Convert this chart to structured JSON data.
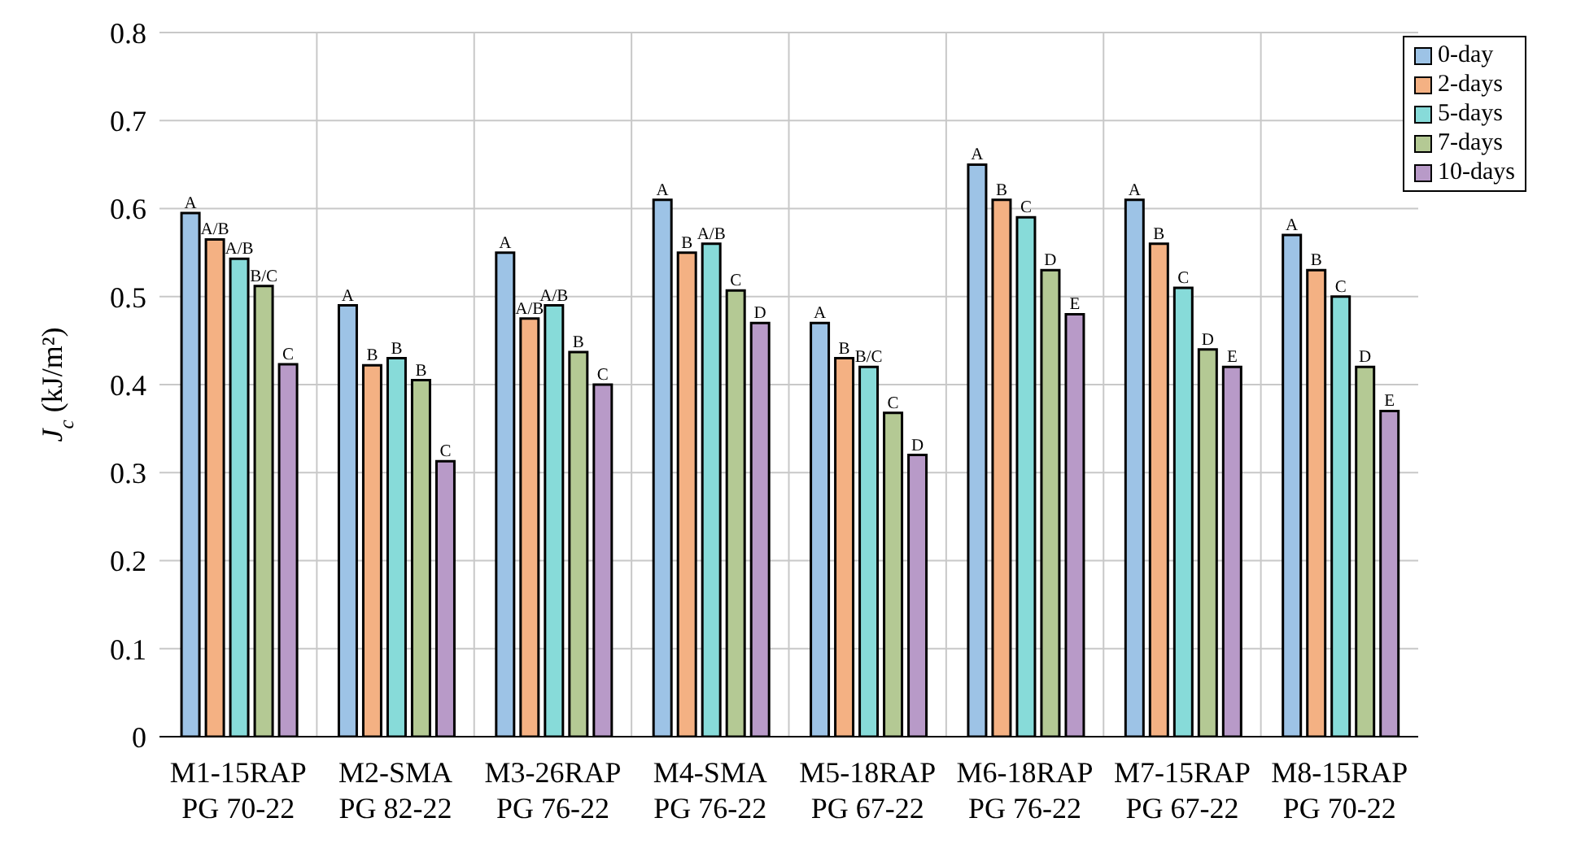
{
  "chart_data": {
    "type": "bar",
    "ylabel": "J$_{c}$ (kJ/m²)",
    "categories": [
      "M1-15RAP\nPG 70-22",
      "M2-SMA\nPG 82-22",
      "M3-26RAP\nPG 76-22",
      "M4-SMA\nPG 76-22",
      "M5-18RAP\nPG 67-22",
      "M6-18RAP\nPG 76-22",
      "M7-15RAP\nPG 67-22",
      "M8-15RAP\nPG 70-22"
    ],
    "series": [
      {
        "name": "0-day",
        "color": "#9dc3e6",
        "values": [
          0.595,
          0.49,
          0.55,
          0.61,
          0.47,
          0.65,
          0.61,
          0.57
        ],
        "value_labels": [
          "A",
          "A",
          "A",
          "A",
          "A",
          "A",
          "A",
          "A"
        ]
      },
      {
        "name": "2-days",
        "color": "#f4b183",
        "values": [
          0.565,
          0.422,
          0.475,
          0.55,
          0.43,
          0.61,
          0.56,
          0.53
        ],
        "value_labels": [
          "A/B",
          "B",
          "A/B",
          "B",
          "B",
          "B",
          "B",
          "B"
        ]
      },
      {
        "name": "5-days",
        "color": "#87dbd9",
        "values": [
          0.543,
          0.43,
          0.49,
          0.56,
          0.42,
          0.59,
          0.51,
          0.5
        ],
        "value_labels": [
          "A/B",
          "B",
          "A/B",
          "A/B",
          "B/C",
          "C",
          "C",
          "C"
        ]
      },
      {
        "name": "7-days",
        "color": "#b4c994",
        "values": [
          0.512,
          0.405,
          0.437,
          0.507,
          0.368,
          0.53,
          0.44,
          0.42
        ],
        "value_labels": [
          "B/C",
          "B",
          "B",
          "C",
          "C",
          "D",
          "D",
          "D"
        ]
      },
      {
        "name": "10-days",
        "color": "#b89ac8",
        "values": [
          0.423,
          0.313,
          0.4,
          0.47,
          0.32,
          0.48,
          0.42,
          0.37
        ],
        "value_labels": [
          "C",
          "C",
          "C",
          "D",
          "D",
          "E",
          "E",
          "E"
        ]
      }
    ],
    "ylim": [
      0,
      0.8
    ],
    "yticks": [
      0,
      0.1,
      0.2,
      0.3,
      0.4,
      0.5,
      0.6,
      0.7,
      0.8
    ],
    "grid": true,
    "legend": "top right"
  }
}
